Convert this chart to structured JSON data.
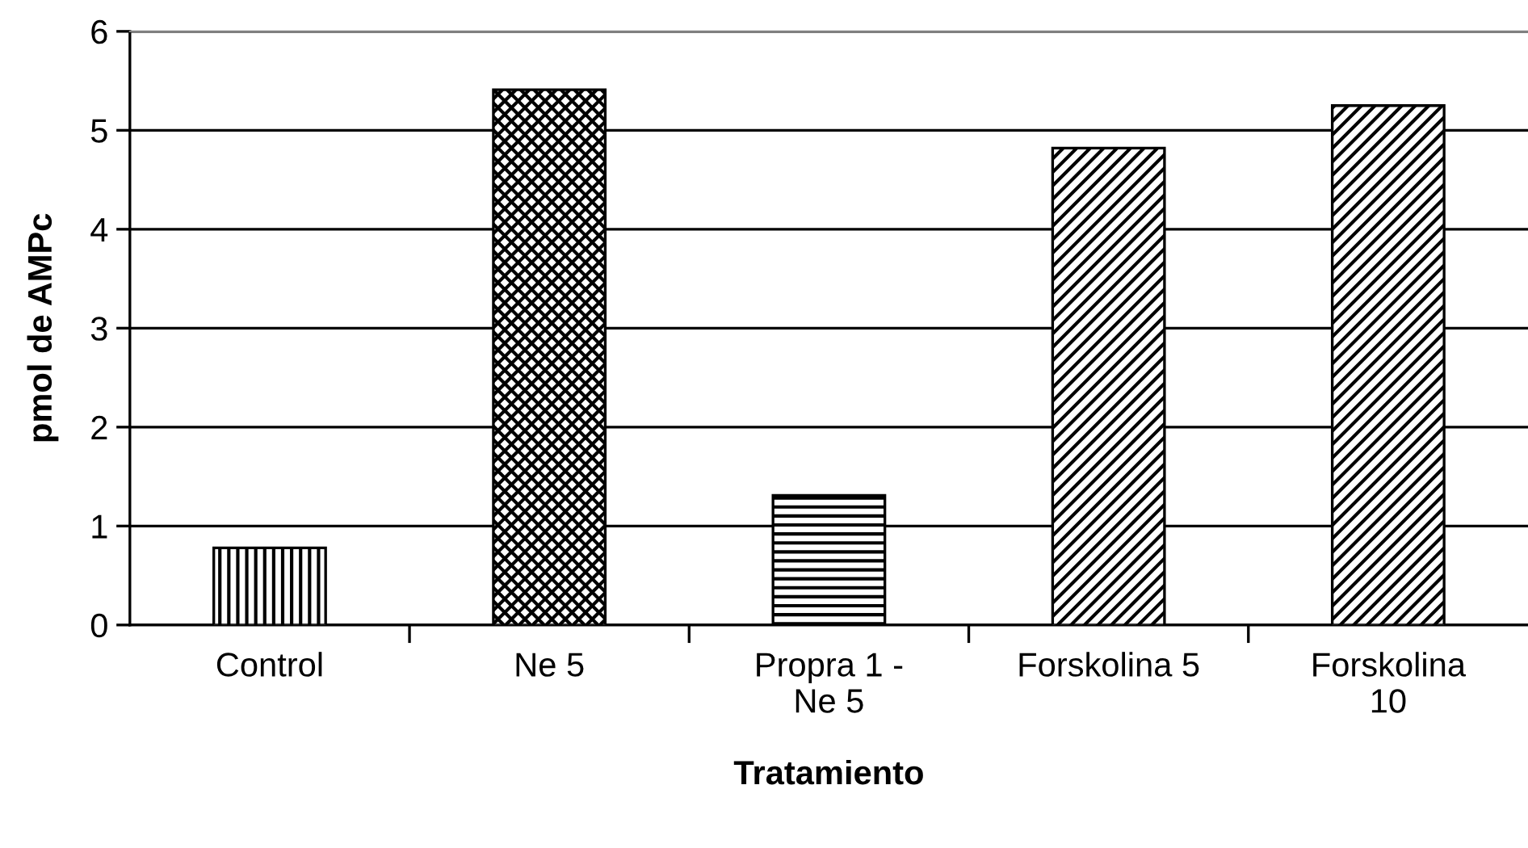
{
  "chart_data": {
    "type": "bar",
    "xlabel": "Tratamiento",
    "ylabel": "pmol de AMPc",
    "categories": [
      "Control",
      "Ne 5",
      "Propra 1 -\nNe 5",
      "Forskolina 5",
      "Forskolina\n10"
    ],
    "values": [
      0.78,
      5.41,
      1.31,
      4.82,
      5.25
    ],
    "colors": [
      "#000000",
      "#000000",
      "#000000",
      "#000000",
      "#000000"
    ],
    "ylim": [
      0,
      6
    ],
    "yticks": [
      0,
      1,
      2,
      3,
      4,
      5,
      6
    ],
    "grid": "y"
  }
}
